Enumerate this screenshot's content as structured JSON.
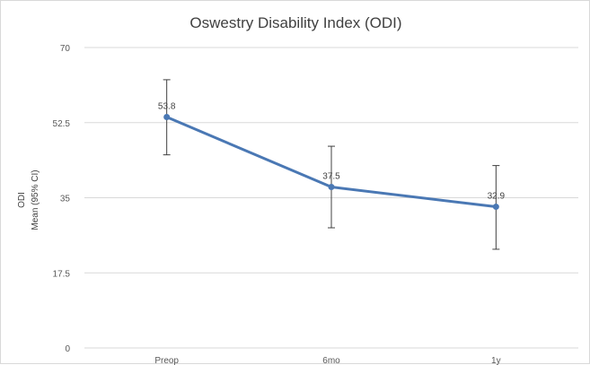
{
  "chart_data": {
    "type": "line",
    "title": "Oswestry Disability Index (ODI)",
    "ylabel_line1": "ODI",
    "ylabel_line2": "Mean (95% CI)",
    "xlabel": "",
    "categories": [
      "Preop",
      "6mo",
      "1y"
    ],
    "ylim": [
      0,
      70
    ],
    "yticks": [
      "0",
      "17.5",
      "35",
      "52.5",
      "70"
    ],
    "grid": true,
    "series": [
      {
        "values": [
          53.8,
          37.5,
          32.9
        ],
        "labels": [
          "53.8",
          "37.5",
          "32.9"
        ],
        "ci_low": [
          45,
          28,
          23
        ],
        "ci_high": [
          62.5,
          47,
          42.5
        ],
        "color": "#4a78b4"
      }
    ]
  }
}
